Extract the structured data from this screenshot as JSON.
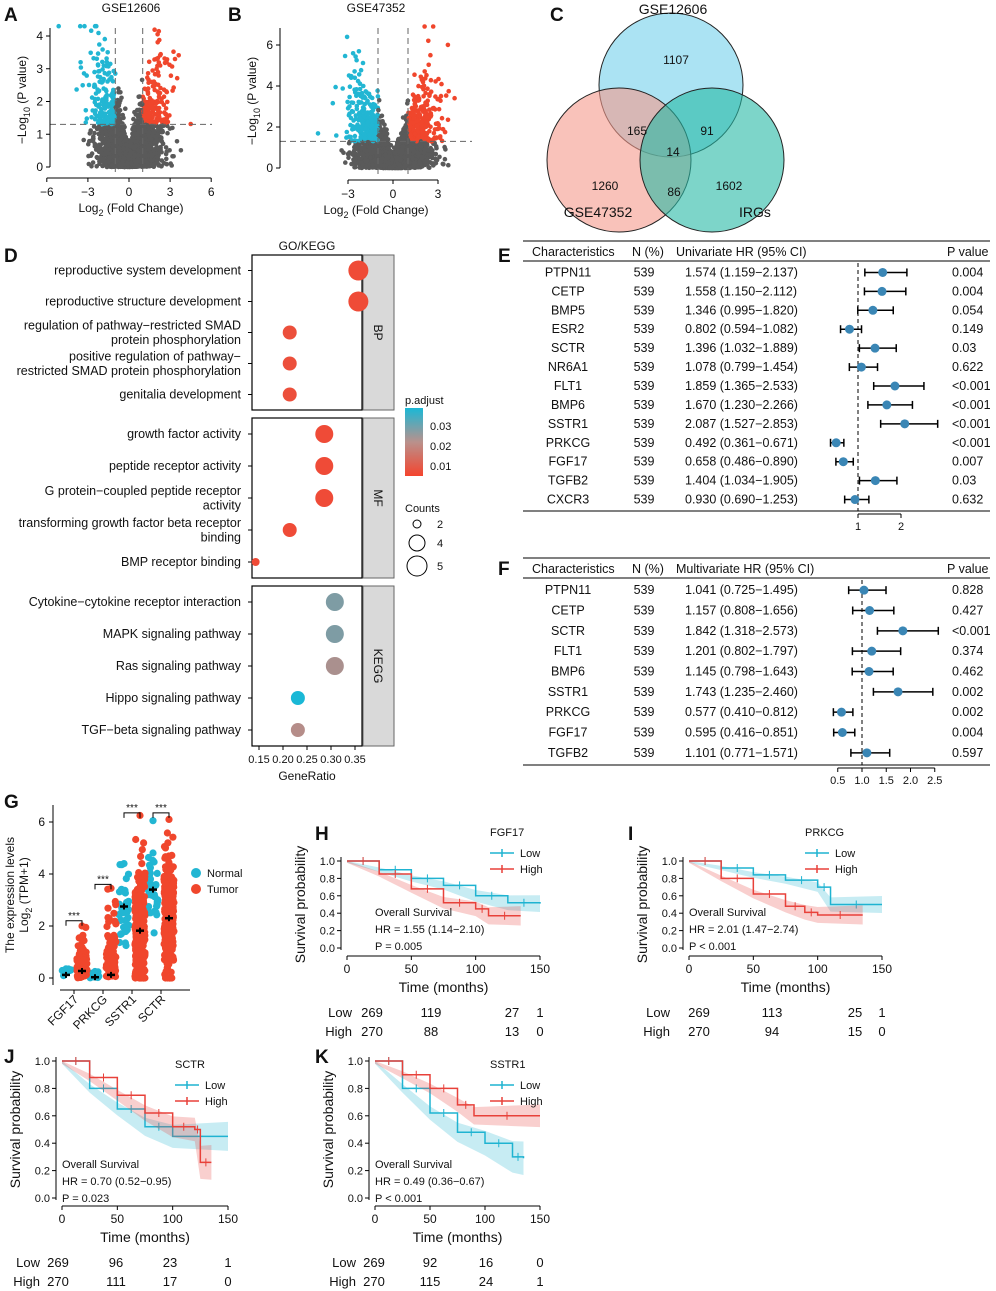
{
  "panel_labels": [
    "A",
    "B",
    "C",
    "D",
    "E",
    "F",
    "G",
    "H",
    "I",
    "J",
    "K"
  ],
  "colors": {
    "up": "#f0462c",
    "down": "#22b6d3",
    "ns": "#5a5a5a",
    "forest_dot": "#3a86b5",
    "low": "#1fb3d1",
    "high": "#e8413a",
    "strip": "#d9d9d9"
  },
  "chart_data": [
    {
      "id": "A",
      "type": "scatter",
      "title": "GSE12606",
      "ylabel_main": "−Log",
      "ylabel_sub": "10",
      "ylabel_tail": " (P value)",
      "xlabel_main": "Log",
      "xlabel_sub": "2",
      "xlabel_tail": " (Fold Change)",
      "xlim": [
        -6,
        6
      ],
      "ylim": [
        0,
        4.3
      ],
      "xticks": [
        "−6",
        "−3",
        "0",
        "3",
        "6"
      ],
      "yticks": [
        "0",
        "1",
        "2",
        "3",
        "4"
      ],
      "fc_threshold": 1,
      "p_threshold_log10": 1.3,
      "groups": [
        "down",
        "not significant",
        "up"
      ]
    },
    {
      "id": "B",
      "type": "scatter",
      "title": "GSE47352",
      "ylabel_main": "−Log",
      "ylabel_sub": "10",
      "ylabel_tail": " (P value)",
      "xlabel_main": "Log",
      "xlabel_sub": "2",
      "xlabel_tail": " (Fold Change)",
      "xlim": [
        -5.3,
        5.3
      ],
      "ylim": [
        0,
        7
      ],
      "xticks": [
        "−3",
        "0",
        "3"
      ],
      "yticks": [
        "0",
        "2",
        "4",
        "6"
      ],
      "fc_threshold": 1,
      "p_threshold_log10": 1.3
    },
    {
      "id": "C",
      "type": "venn",
      "sets": [
        "GSE12606",
        "GSE47352",
        "IRGs"
      ],
      "regions": {
        "GSE12606_only": "1107",
        "GSE47352_only": "1260",
        "IRGs_only": "1602",
        "GSE12606_GSE47352": "165",
        "GSE12606_IRGs": "91",
        "GSE47352_IRGs": "86",
        "all": "14"
      }
    },
    {
      "id": "D",
      "type": "scatter",
      "title": "GO/KEGG",
      "xlabel": "GeneRatio",
      "xlim": [
        0.14,
        0.37
      ],
      "xticks": [
        "0.15",
        "0.20",
        "0.25",
        "0.30",
        "0.35"
      ],
      "color_legend_title": "p.adjust",
      "color_ticks": [
        "0.03",
        "0.02",
        "0.01"
      ],
      "size_legend_title": "Counts",
      "size_legend": [
        "2",
        "4",
        "5"
      ],
      "facets": [
        {
          "name": "BP",
          "terms": [
            {
              "term": "reproductive system development",
              "lines": [
                "reproductive system development"
              ],
              "ratio": 0.357,
              "count": 5,
              "padj": 0.002
            },
            {
              "term": "reproductive structure development",
              "lines": [
                "reproductive structure development"
              ],
              "ratio": 0.357,
              "count": 5,
              "padj": 0.002
            },
            {
              "term": "regulation of pathway−restricted SMAD protein phosphorylation",
              "lines": [
                "regulation of pathway−restricted SMAD",
                "protein phosphorylation"
              ],
              "ratio": 0.214,
              "count": 3,
              "padj": 0.003
            },
            {
              "term": "positive regulation of pathway−restricted SMAD protein phosphorylation",
              "lines": [
                "positive regulation of pathway−",
                "restricted SMAD protein phosphorylation"
              ],
              "ratio": 0.214,
              "count": 3,
              "padj": 0.003
            },
            {
              "term": "genitalia development",
              "lines": [
                "genitalia development"
              ],
              "ratio": 0.214,
              "count": 3,
              "padj": 0.003
            }
          ]
        },
        {
          "name": "MF",
          "terms": [
            {
              "term": "growth factor activity",
              "lines": [
                "growth factor activity"
              ],
              "ratio": 0.286,
              "count": 4,
              "padj": 0.002
            },
            {
              "term": "peptide receptor activity",
              "lines": [
                "peptide receptor activity"
              ],
              "ratio": 0.286,
              "count": 4,
              "padj": 0.002
            },
            {
              "term": "G protein−coupled peptide receptor activity",
              "lines": [
                "G protein−coupled peptide receptor",
                "activity"
              ],
              "ratio": 0.286,
              "count": 4,
              "padj": 0.002
            },
            {
              "term": "transforming growth factor beta receptor binding",
              "lines": [
                "transforming growth factor beta receptor",
                "binding"
              ],
              "ratio": 0.214,
              "count": 3,
              "padj": 0.002
            },
            {
              "term": "BMP receptor binding",
              "lines": [
                "BMP receptor binding"
              ],
              "ratio": 0.143,
              "count": 2,
              "padj": 0.002
            }
          ]
        },
        {
          "name": "KEGG",
          "terms": [
            {
              "term": "Cytokine−cytokine receptor interaction",
              "lines": [
                "Cytokine−cytokine receptor interaction"
              ],
              "ratio": 0.308,
              "count": 4,
              "padj": 0.026
            },
            {
              "term": "MAPK signaling pathway",
              "lines": [
                "MAPK signaling pathway"
              ],
              "ratio": 0.308,
              "count": 4,
              "padj": 0.026
            },
            {
              "term": "Ras signaling pathway",
              "lines": [
                "Ras signaling pathway"
              ],
              "ratio": 0.308,
              "count": 4,
              "padj": 0.022
            },
            {
              "term": "Hippo signaling pathway",
              "lines": [
                "Hippo signaling pathway"
              ],
              "ratio": 0.231,
              "count": 3,
              "padj": 0.035
            },
            {
              "term": "TGF−beta signaling pathway",
              "lines": [
                "TGF−beta signaling pathway"
              ],
              "ratio": 0.231,
              "count": 3,
              "padj": 0.021
            }
          ]
        }
      ]
    },
    {
      "id": "E",
      "type": "table",
      "headers": [
        "Characteristics",
        "N (%)",
        "Univariate HR (95% CI)",
        "P value"
      ],
      "xticks": [
        "1",
        "2"
      ],
      "reference": 1,
      "rows": [
        {
          "gene": "PTPN11",
          "n": "539",
          "hr_ci": "1.574 (1.159−2.137)",
          "hr": 1.574,
          "lo": 1.159,
          "hi": 2.137,
          "p": "0.004"
        },
        {
          "gene": "CETP",
          "n": "539",
          "hr_ci": "1.558 (1.150−2.112)",
          "hr": 1.558,
          "lo": 1.15,
          "hi": 2.112,
          "p": "0.004"
        },
        {
          "gene": "BMP5",
          "n": "539",
          "hr_ci": "1.346 (0.995−1.820)",
          "hr": 1.346,
          "lo": 0.995,
          "hi": 1.82,
          "p": "0.054"
        },
        {
          "gene": "ESR2",
          "n": "539",
          "hr_ci": "0.802 (0.594−1.082)",
          "hr": 0.802,
          "lo": 0.594,
          "hi": 1.082,
          "p": "0.149"
        },
        {
          "gene": "SCTR",
          "n": "539",
          "hr_ci": "1.396 (1.032−1.889)",
          "hr": 1.396,
          "lo": 1.032,
          "hi": 1.889,
          "p": "0.03"
        },
        {
          "gene": "NR6A1",
          "n": "539",
          "hr_ci": "1.078 (0.799−1.454)",
          "hr": 1.078,
          "lo": 0.799,
          "hi": 1.454,
          "p": "0.622"
        },
        {
          "gene": "FLT1",
          "n": "539",
          "hr_ci": "1.859 (1.365−2.533)",
          "hr": 1.859,
          "lo": 1.365,
          "hi": 2.533,
          "p": "<0.001"
        },
        {
          "gene": "BMP6",
          "n": "539",
          "hr_ci": "1.670 (1.230−2.266)",
          "hr": 1.67,
          "lo": 1.23,
          "hi": 2.266,
          "p": "<0.001"
        },
        {
          "gene": "SSTR1",
          "n": "539",
          "hr_ci": "2.087 (1.527−2.853)",
          "hr": 2.087,
          "lo": 1.527,
          "hi": 2.853,
          "p": "<0.001"
        },
        {
          "gene": "PRKCG",
          "n": "539",
          "hr_ci": "0.492 (0.361−0.671)",
          "hr": 0.492,
          "lo": 0.361,
          "hi": 0.671,
          "p": "<0.001"
        },
        {
          "gene": "FGF17",
          "n": "539",
          "hr_ci": "0.658 (0.486−0.890)",
          "hr": 0.658,
          "lo": 0.486,
          "hi": 0.89,
          "p": "0.007"
        },
        {
          "gene": "TGFB2",
          "n": "539",
          "hr_ci": "1.404 (1.034−1.905)",
          "hr": 1.404,
          "lo": 1.034,
          "hi": 1.905,
          "p": "0.03"
        },
        {
          "gene": "CXCR3",
          "n": "539",
          "hr_ci": "0.930 (0.690−1.253)",
          "hr": 0.93,
          "lo": 0.69,
          "hi": 1.253,
          "p": "0.632"
        }
      ]
    },
    {
      "id": "F",
      "type": "table",
      "headers": [
        "Characteristics",
        "N (%)",
        "Multivariate HR (95% CI)",
        "P value"
      ],
      "xticks": [
        "0.5",
        "1.0",
        "1.5",
        "2.0",
        "2.5"
      ],
      "reference": 1,
      "rows": [
        {
          "gene": "PTPN11",
          "n": "539",
          "hr_ci": "1.041 (0.725−1.495)",
          "hr": 1.041,
          "lo": 0.725,
          "hi": 1.495,
          "p": "0.828"
        },
        {
          "gene": "CETP",
          "n": "539",
          "hr_ci": "1.157 (0.808−1.656)",
          "hr": 1.157,
          "lo": 0.808,
          "hi": 1.656,
          "p": "0.427"
        },
        {
          "gene": "SCTR",
          "n": "539",
          "hr_ci": "1.842 (1.318−2.573)",
          "hr": 1.842,
          "lo": 1.318,
          "hi": 2.573,
          "p": "<0.001"
        },
        {
          "gene": "FLT1",
          "n": "539",
          "hr_ci": "1.201 (0.802−1.797)",
          "hr": 1.201,
          "lo": 0.802,
          "hi": 1.797,
          "p": "0.374"
        },
        {
          "gene": "BMP6",
          "n": "539",
          "hr_ci": "1.145 (0.798−1.643)",
          "hr": 1.145,
          "lo": 0.798,
          "hi": 1.643,
          "p": "0.462"
        },
        {
          "gene": "SSTR1",
          "n": "539",
          "hr_ci": "1.743 (1.235−2.460)",
          "hr": 1.743,
          "lo": 1.235,
          "hi": 2.46,
          "p": "0.002"
        },
        {
          "gene": "PRKCG",
          "n": "539",
          "hr_ci": "0.577 (0.410−0.812)",
          "hr": 0.577,
          "lo": 0.41,
          "hi": 0.812,
          "p": "0.002"
        },
        {
          "gene": "FGF17",
          "n": "539",
          "hr_ci": "0.595 (0.416−0.851)",
          "hr": 0.595,
          "lo": 0.416,
          "hi": 0.851,
          "p": "0.004"
        },
        {
          "gene": "TGFB2",
          "n": "539",
          "hr_ci": "1.101 (0.771−1.571)",
          "hr": 1.101,
          "lo": 0.771,
          "hi": 1.571,
          "p": "0.597"
        }
      ]
    },
    {
      "id": "G",
      "type": "scatter",
      "ylabel_line1": "The expression levels",
      "ylabel_main": "Log",
      "ylabel_sub": "2",
      "ylabel_tail": " (TPM+1)",
      "ylim": [
        0,
        6.5
      ],
      "yticks": [
        "0",
        "2",
        "4",
        "6"
      ],
      "categories": [
        "FGF17",
        "PRKCG",
        "SSTR1",
        "SCTR"
      ],
      "legend": [
        "Normal",
        "Tumor"
      ],
      "significance": "***",
      "series": [
        {
          "name": "Normal",
          "mean": [
            0.12,
            0.03,
            2.75,
            3.4
          ],
          "max": [
            0.35,
            0.25,
            4.4,
            6.05
          ],
          "min": [
            0,
            0,
            1.25,
            1.4
          ]
        },
        {
          "name": "Tumor",
          "mean": [
            0.27,
            0.12,
            1.82,
            2.3
          ],
          "max": [
            2.0,
            3.45,
            6.25,
            6.1
          ],
          "min": [
            0,
            0,
            0,
            0
          ]
        }
      ]
    },
    {
      "id": "H",
      "type": "line",
      "gene": "FGF17",
      "legend": [
        "Low",
        "High"
      ],
      "ylabel": "Survival probability",
      "xlabel": "Time (months)",
      "xticks": [
        "0",
        "50",
        "100",
        "150"
      ],
      "yticks": [
        "0.0",
        "0.2",
        "0.4",
        "0.6",
        "0.8",
        "1.0"
      ],
      "annotation": [
        "Overall Survival",
        "HR = 1.55 (1.14−2.10)",
        "P = 0.005"
      ],
      "risk": {
        "Low": [
          "269",
          "119",
          "27",
          "1"
        ],
        "High": [
          "270",
          "88",
          "13",
          "0"
        ]
      },
      "series": [
        {
          "name": "Low",
          "x": [
            0,
            25,
            50,
            75,
            100,
            125,
            150
          ],
          "y": [
            1,
            0.9,
            0.8,
            0.72,
            0.6,
            0.52,
            0.51
          ]
        },
        {
          "name": "High",
          "x": [
            0,
            25,
            50,
            75,
            100,
            110,
            135
          ],
          "y": [
            1,
            0.85,
            0.68,
            0.52,
            0.45,
            0.37,
            0.37
          ]
        }
      ]
    },
    {
      "id": "I",
      "type": "line",
      "gene": "PRKCG",
      "legend": [
        "Low",
        "High"
      ],
      "ylabel": "Survival probability",
      "xlabel": "Time (months)",
      "xticks": [
        "0",
        "50",
        "100",
        "150"
      ],
      "yticks": [
        "0.0",
        "0.2",
        "0.4",
        "0.6",
        "0.8",
        "1.0"
      ],
      "annotation": [
        "Overall Survival",
        "HR = 2.01 (1.47−2.74)",
        "P < 0.001"
      ],
      "risk": {
        "Low": [
          "269",
          "113",
          "25",
          "1"
        ],
        "High": [
          "270",
          "94",
          "15",
          "0"
        ]
      },
      "series": [
        {
          "name": "Low",
          "x": [
            0,
            25,
            50,
            75,
            100,
            110,
            150
          ],
          "y": [
            1,
            0.92,
            0.84,
            0.78,
            0.7,
            0.5,
            0.5
          ]
        },
        {
          "name": "High",
          "x": [
            0,
            25,
            50,
            75,
            90,
            100,
            135
          ],
          "y": [
            1,
            0.8,
            0.62,
            0.48,
            0.41,
            0.38,
            0.38
          ]
        }
      ]
    },
    {
      "id": "J",
      "type": "line",
      "gene": "SCTR",
      "legend": [
        "Low",
        "High"
      ],
      "ylabel": "Survival probability",
      "xlabel": "Time (months)",
      "xticks": [
        "0",
        "50",
        "100",
        "150"
      ],
      "yticks": [
        "0.0",
        "0.2",
        "0.4",
        "0.6",
        "0.8",
        "1.0"
      ],
      "annotation": [
        "Overall Survival",
        "HR = 0.70 (0.52−0.95)",
        "P = 0.023"
      ],
      "risk": {
        "Low": [
          "269",
          "96",
          "23",
          "1"
        ],
        "High": [
          "270",
          "111",
          "17",
          "0"
        ]
      },
      "series": [
        {
          "name": "Low",
          "x": [
            0,
            25,
            50,
            75,
            100,
            150
          ],
          "y": [
            1,
            0.8,
            0.65,
            0.52,
            0.45,
            0.45
          ]
        },
        {
          "name": "High",
          "x": [
            0,
            25,
            50,
            75,
            100,
            120,
            125,
            135
          ],
          "y": [
            1,
            0.88,
            0.75,
            0.62,
            0.52,
            0.5,
            0.26,
            0.26
          ]
        }
      ]
    },
    {
      "id": "K",
      "type": "line",
      "gene": "SSTR1",
      "legend": [
        "Low",
        "High"
      ],
      "ylabel": "Survival probability",
      "xlabel": "Time (months)",
      "xticks": [
        "0",
        "50",
        "100",
        "150"
      ],
      "yticks": [
        "0.0",
        "0.2",
        "0.4",
        "0.6",
        "0.8",
        "1.0"
      ],
      "annotation": [
        "Overall Survival",
        "HR = 0.49 (0.36−0.67)",
        "P < 0.001"
      ],
      "risk": {
        "Low": [
          "269",
          "92",
          "16",
          "0"
        ],
        "High": [
          "270",
          "115",
          "24",
          "1"
        ]
      },
      "series": [
        {
          "name": "Low",
          "x": [
            0,
            25,
            50,
            75,
            100,
            125,
            135
          ],
          "y": [
            1,
            0.8,
            0.62,
            0.48,
            0.4,
            0.3,
            0.29
          ]
        },
        {
          "name": "High",
          "x": [
            0,
            25,
            50,
            75,
            90,
            150
          ],
          "y": [
            1,
            0.9,
            0.8,
            0.68,
            0.6,
            0.6
          ]
        }
      ]
    }
  ]
}
